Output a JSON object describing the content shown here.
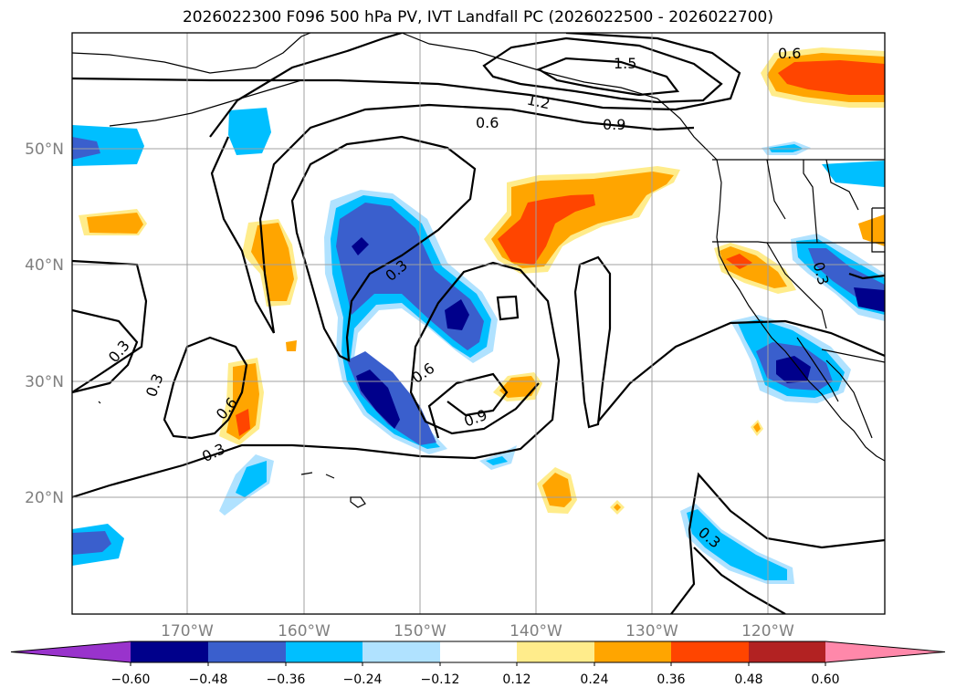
{
  "title": "2026022300 F096 500 hPa PV, IVT Landfall PC (2026022500 - 2026022700)",
  "axes": {
    "lat_ticks": [
      "50°N",
      "40°N",
      "30°N",
      "20°N"
    ],
    "lon_ticks": [
      "170°W",
      "160°W",
      "150°W",
      "140°W",
      "130°W",
      "120°W"
    ]
  },
  "contour_labels": [
    "0.6",
    "1.5",
    "1.2",
    "0.6",
    "0.9",
    "0.3",
    "0.3",
    "0.3",
    "0.6",
    "0.3",
    "0.6",
    "0.9",
    "0.3",
    "0.3"
  ],
  "colorbar": {
    "colors": [
      "#9933cc",
      "#00008b",
      "#3a5fcd",
      "#00bfff",
      "#b0e2ff",
      "#ffffff",
      "#ffec8b",
      "#ffa500",
      "#ff4500",
      "#b22222",
      "#ff88aa"
    ],
    "labels": [
      "−0.60",
      "−0.48",
      "−0.36",
      "−0.24",
      "−0.12",
      "0.12",
      "0.24",
      "0.36",
      "0.48",
      "0.60"
    ]
  }
}
